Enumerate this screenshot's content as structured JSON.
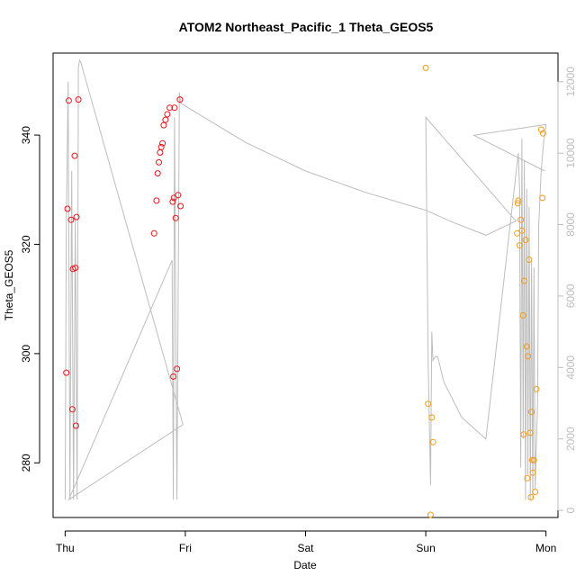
{
  "chart_data": {
    "type": "scatter",
    "title": "ATOM2 Northeast_Pacific_1 Theta_GEOS5",
    "xlabel": "Date",
    "ylabel": "Theta_GEOS5",
    "x_ticks": [
      "Thu",
      "Fri",
      "Sat",
      "Sun",
      "Mon"
    ],
    "xlim": [
      -0.1,
      4.1
    ],
    "ylim": [
      270,
      355
    ],
    "y_ticks": [
      280,
      300,
      320,
      340
    ],
    "y2lim": [
      -200,
      12800
    ],
    "y2_ticks": [
      0,
      2000,
      4000,
      6000,
      8000,
      10000,
      12000
    ],
    "grid": false,
    "colors": {
      "red_points": "#e8141c",
      "orange_points": "#f39c1a",
      "altitude_line": "#bdbdbd"
    },
    "series": [
      {
        "color": "red",
        "points": [
          [
            0.01,
            296.5
          ],
          [
            0.02,
            326.5
          ],
          [
            0.03,
            346.3
          ],
          [
            0.05,
            324.5
          ],
          [
            0.06,
            289.8
          ],
          [
            0.065,
            315.5
          ],
          [
            0.08,
            336.2
          ],
          [
            0.085,
            315.7
          ],
          [
            0.09,
            286.8
          ],
          [
            0.095,
            325.0
          ],
          [
            0.11,
            346.5
          ],
          [
            0.74,
            322.0
          ],
          [
            0.76,
            328.0
          ],
          [
            0.77,
            333.0
          ],
          [
            0.78,
            335.0
          ],
          [
            0.79,
            336.8
          ],
          [
            0.8,
            337.8
          ],
          [
            0.81,
            338.5
          ],
          [
            0.82,
            341.8
          ],
          [
            0.835,
            342.8
          ],
          [
            0.85,
            343.8
          ],
          [
            0.87,
            345.0
          ],
          [
            0.91,
            345.0
          ],
          [
            0.895,
            327.8
          ],
          [
            0.92,
            324.8
          ],
          [
            0.9,
            295.8
          ],
          [
            0.905,
            328.5
          ],
          [
            0.93,
            297.2
          ],
          [
            0.94,
            329.0
          ],
          [
            0.955,
            346.5
          ],
          [
            0.96,
            327.0
          ]
        ]
      },
      {
        "color": "orange",
        "points": [
          [
            3.0,
            352.3
          ],
          [
            3.02,
            290.8
          ],
          [
            3.04,
            270.5
          ],
          [
            3.05,
            288.3
          ],
          [
            3.06,
            283.8
          ],
          [
            3.76,
            322.0
          ],
          [
            3.765,
            327.5
          ],
          [
            3.77,
            328.0
          ],
          [
            3.78,
            319.8
          ],
          [
            3.79,
            324.5
          ],
          [
            3.8,
            322.5
          ],
          [
            3.81,
            307.0
          ],
          [
            3.815,
            285.2
          ],
          [
            3.82,
            313.3
          ],
          [
            3.83,
            320.8
          ],
          [
            3.84,
            301.3
          ],
          [
            3.845,
            277.2
          ],
          [
            3.85,
            299.5
          ],
          [
            3.86,
            317.2
          ],
          [
            3.87,
            285.5
          ],
          [
            3.875,
            273.7
          ],
          [
            3.88,
            289.3
          ],
          [
            3.885,
            280.5
          ],
          [
            3.89,
            278.2
          ],
          [
            3.9,
            280.5
          ],
          [
            3.91,
            274.7
          ],
          [
            3.92,
            293.5
          ],
          [
            3.96,
            341.0
          ],
          [
            3.97,
            328.5
          ],
          [
            3.975,
            340.3
          ]
        ]
      }
    ],
    "altitude_line": {
      "axis": "right",
      "points": [
        [
          0.0,
          300
        ],
        [
          0.01,
          8000
        ],
        [
          0.025,
          12000
        ],
        [
          0.04,
          300
        ],
        [
          0.055,
          9500
        ],
        [
          0.07,
          300
        ],
        [
          0.085,
          8200
        ],
        [
          0.1,
          300
        ],
        [
          0.11,
          12400
        ],
        [
          0.12,
          12600
        ],
        [
          0.13,
          12550
        ],
        [
          0.98,
          2400
        ],
        [
          0.03,
          300
        ],
        [
          0.89,
          7000
        ],
        [
          0.9,
          300
        ],
        [
          0.91,
          11000
        ],
        [
          0.93,
          300
        ],
        [
          0.95,
          11700
        ],
        [
          0.96,
          11400
        ],
        [
          1.5,
          10300
        ],
        [
          2.0,
          9500
        ],
        [
          2.5,
          8900
        ],
        [
          3.0,
          8400
        ],
        [
          3.2,
          8100
        ],
        [
          3.5,
          7700
        ],
        [
          3.75,
          8100
        ],
        [
          3.0,
          11000
        ],
        [
          3.02,
          4200
        ],
        [
          3.04,
          700
        ],
        [
          3.05,
          5000
        ],
        [
          3.06,
          4200
        ],
        [
          3.08,
          4300
        ],
        [
          3.1,
          4300
        ],
        [
          3.15,
          3600
        ],
        [
          3.3,
          2600
        ],
        [
          3.5,
          2000
        ],
        [
          3.77,
          10000
        ],
        [
          3.78,
          9000
        ],
        [
          3.79,
          1200
        ],
        [
          3.8,
          10400
        ],
        [
          3.81,
          2000
        ],
        [
          3.82,
          9800
        ],
        [
          3.83,
          300
        ],
        [
          3.84,
          9000
        ],
        [
          3.85,
          1000
        ],
        [
          3.86,
          8500
        ],
        [
          3.87,
          300
        ],
        [
          3.88,
          7000
        ],
        [
          3.89,
          300
        ],
        [
          3.9,
          6800
        ],
        [
          3.91,
          600
        ],
        [
          3.93,
          3000
        ],
        [
          3.94,
          8000
        ],
        [
          3.96,
          9500
        ],
        [
          3.98,
          10300
        ],
        [
          4.0,
          10800
        ],
        [
          3.4,
          10500
        ],
        [
          3.99,
          9500
        ]
      ]
    }
  }
}
